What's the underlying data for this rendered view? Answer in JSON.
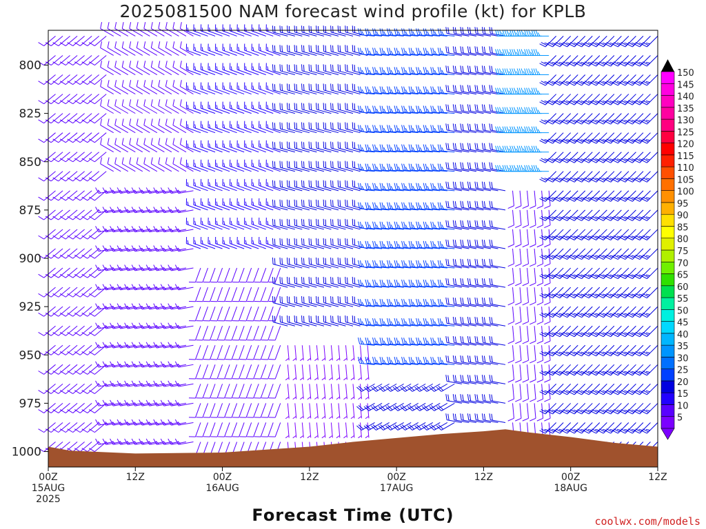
{
  "chart_data": {
    "type": "wind_barb_time_height",
    "title": "2025081500 NAM forecast wind profile (kt) for KPLB",
    "xlabel": "Forecast Time (UTC)",
    "ylabel": "",
    "credit": "coolwx.com/models",
    "x_ticks": [
      {
        "hour": 0,
        "l1": "00Z",
        "l2": "15AUG",
        "l3": "2025"
      },
      {
        "hour": 12,
        "l1": "12Z",
        "l2": "",
        "l3": ""
      },
      {
        "hour": 24,
        "l1": "00Z",
        "l2": "16AUG",
        "l3": ""
      },
      {
        "hour": 36,
        "l1": "12Z",
        "l2": "",
        "l3": ""
      },
      {
        "hour": 48,
        "l1": "00Z",
        "l2": "17AUG",
        "l3": ""
      },
      {
        "hour": 60,
        "l1": "12Z",
        "l2": "",
        "l3": ""
      },
      {
        "hour": 72,
        "l1": "00Z",
        "l2": "18AUG",
        "l3": ""
      },
      {
        "hour": 84,
        "l1": "12Z",
        "l2": "",
        "l3": ""
      }
    ],
    "x_range_hours": [
      0,
      84
    ],
    "y_ticks": [
      800,
      825,
      850,
      875,
      900,
      925,
      950,
      975,
      1000
    ],
    "y_range_hpa": [
      1008,
      782
    ],
    "pressure_levels": [
      785,
      795,
      805,
      815,
      825,
      835,
      845,
      855,
      865,
      875,
      885,
      895,
      905,
      915,
      925,
      935,
      945,
      955,
      965,
      975,
      985,
      995,
      1005
    ],
    "colorbar": {
      "values": [
        5,
        10,
        15,
        20,
        25,
        30,
        35,
        40,
        45,
        50,
        55,
        60,
        65,
        70,
        75,
        80,
        85,
        90,
        95,
        100,
        105,
        110,
        115,
        120,
        125,
        130,
        135,
        140,
        145,
        150
      ],
      "colors": [
        "#7b00ff",
        "#5a00ff",
        "#2200ff",
        "#0000e0",
        "#0040ff",
        "#0070ff",
        "#0095ff",
        "#00b6ff",
        "#00d8ff",
        "#00f0e0",
        "#00f0a0",
        "#00e050",
        "#30e000",
        "#70f000",
        "#b0f000",
        "#e0f000",
        "#ffff00",
        "#ffe000",
        "#ffb000",
        "#ff9000",
        "#ff7000",
        "#ff5000",
        "#ff2000",
        "#ff0000",
        "#ff0040",
        "#ff0080",
        "#ff00a0",
        "#ff00c0",
        "#ff00e0",
        "#ff00ff"
      ]
    },
    "surface_pressure_hpa": [
      [
        0,
        997.5
      ],
      [
        3,
        999.5
      ],
      [
        12,
        1001.0
      ],
      [
        24,
        1000.5
      ],
      [
        30,
        999.0
      ],
      [
        36,
        997.5
      ],
      [
        42,
        995.0
      ],
      [
        48,
        993.0
      ],
      [
        54,
        991.0
      ],
      [
        60,
        989.5
      ],
      [
        63,
        988.5
      ],
      [
        66,
        990.0
      ],
      [
        72,
        992.5
      ],
      [
        78,
        995.5
      ],
      [
        84,
        997.5
      ]
    ],
    "surface_color": "#a0522d",
    "wind_regimes": [
      {
        "t0": 0,
        "t1": 9,
        "p0": 780,
        "p1": 1010,
        "dir": 230,
        "spd": 12
      },
      {
        "t0": 9,
        "t1": 21,
        "p0": 780,
        "p1": 860,
        "dir": 300,
        "spd": 10
      },
      {
        "t0": 9,
        "t1": 21,
        "p0": 860,
        "p1": 1010,
        "dir": 260,
        "spd": 14
      },
      {
        "t0": 21,
        "t1": 33,
        "p0": 780,
        "p1": 900,
        "dir": 290,
        "spd": 16
      },
      {
        "t0": 21,
        "t1": 33,
        "p0": 900,
        "p1": 1010,
        "dir": 200,
        "spd": 10
      },
      {
        "t0": 33,
        "t1": 45,
        "p0": 780,
        "p1": 940,
        "dir": 285,
        "spd": 20
      },
      {
        "t0": 33,
        "t1": 45,
        "p0": 940,
        "p1": 1010,
        "dir": 175,
        "spd": 7
      },
      {
        "t0": 45,
        "t1": 57,
        "p0": 780,
        "p1": 960,
        "dir": 275,
        "spd": 26
      },
      {
        "t0": 45,
        "t1": 57,
        "p0": 960,
        "p1": 1010,
        "dir": 240,
        "spd": 22
      },
      {
        "t0": 57,
        "t1": 64,
        "p0": 780,
        "p1": 1010,
        "dir": 280,
        "spd": 22
      },
      {
        "t0": 64,
        "t1": 70,
        "p0": 780,
        "p1": 860,
        "dir": 270,
        "spd": 36
      },
      {
        "t0": 64,
        "t1": 70,
        "p0": 860,
        "p1": 1010,
        "dir": 175,
        "spd": 10
      },
      {
        "t0": 70,
        "t1": 85,
        "p0": 780,
        "p1": 1010,
        "dir": 225,
        "spd": 24
      }
    ]
  }
}
